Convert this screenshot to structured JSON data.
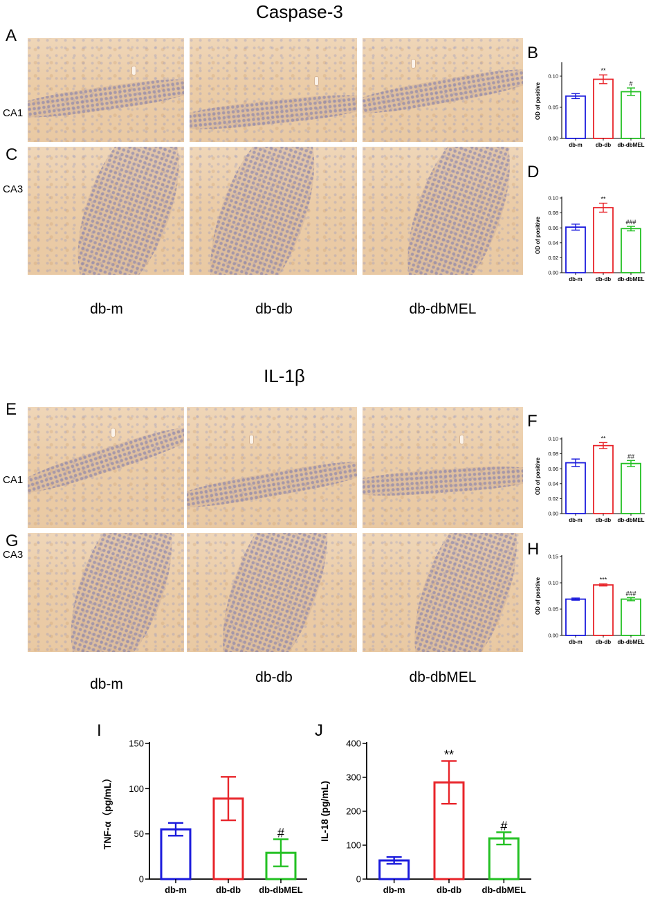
{
  "sections": {
    "top_title": "Caspase-3",
    "mid_title": "IL-1β"
  },
  "panel_letters": [
    "A",
    "B",
    "C",
    "D",
    "E",
    "F",
    "G",
    "H",
    "I",
    "J"
  ],
  "region_labels": [
    "CA1",
    "CA3",
    "CA1",
    "CA3"
  ],
  "group_labels": [
    "db-m",
    "db-db",
    "db-dbMEL"
  ],
  "colors": {
    "db-m": "#1a1adc",
    "db-db": "#e8242a",
    "db-dbMEL": "#22c022"
  },
  "chart_data": [
    {
      "panel": "B",
      "type": "bar",
      "categories": [
        "db-m",
        "db-db",
        "db-dbMEL"
      ],
      "values": [
        0.068,
        0.095,
        0.075
      ],
      "errors": [
        0.004,
        0.007,
        0.006
      ],
      "annotations": [
        "",
        "**",
        "#"
      ],
      "ylabel": "OD of positive",
      "ylim": [
        0,
        0.12
      ],
      "yticks": [
        "0.00",
        "0.05",
        "0.10"
      ],
      "ytick_values": [
        0,
        0.05,
        0.1
      ]
    },
    {
      "panel": "D",
      "type": "bar",
      "categories": [
        "db-m",
        "db-db",
        "db-dbMEL"
      ],
      "values": [
        0.061,
        0.087,
        0.059
      ],
      "errors": [
        0.004,
        0.006,
        0.003
      ],
      "annotations": [
        "",
        "**",
        "###"
      ],
      "ylabel": "OD of positive",
      "ylim": [
        0,
        0.1
      ],
      "yticks": [
        "0.00",
        "0.02",
        "0.04",
        "0.06",
        "0.08",
        "0.10"
      ],
      "ytick_values": [
        0,
        0.02,
        0.04,
        0.06,
        0.08,
        0.1
      ]
    },
    {
      "panel": "F",
      "type": "bar",
      "categories": [
        "db-m",
        "db-db",
        "db-dbMEL"
      ],
      "values": [
        0.068,
        0.091,
        0.067
      ],
      "errors": [
        0.005,
        0.004,
        0.004
      ],
      "annotations": [
        "",
        "**",
        "##"
      ],
      "ylabel": "OD of positive",
      "ylim": [
        0,
        0.1
      ],
      "yticks": [
        "0.00",
        "0.02",
        "0.04",
        "0.06",
        "0.08",
        "0.10"
      ],
      "ytick_values": [
        0,
        0.02,
        0.04,
        0.06,
        0.08,
        0.1
      ]
    },
    {
      "panel": "H",
      "type": "bar",
      "categories": [
        "db-m",
        "db-db",
        "db-dbMEL"
      ],
      "values": [
        0.069,
        0.096,
        0.069
      ],
      "errors": [
        0.002,
        0.002,
        0.003
      ],
      "annotations": [
        "",
        "***",
        "###"
      ],
      "ylabel": "OD of positive",
      "ylim": [
        0,
        0.15
      ],
      "yticks": [
        "0.00",
        "0.05",
        "0.10",
        "0.15"
      ],
      "ytick_values": [
        0,
        0.05,
        0.1,
        0.15
      ]
    },
    {
      "panel": "I",
      "type": "bar",
      "categories": [
        "db-m",
        "db-db",
        "db-dbMEL"
      ],
      "values": [
        55,
        89,
        29
      ],
      "errors": [
        7,
        24,
        15
      ],
      "annotations": [
        "",
        "",
        "#"
      ],
      "ylabel": "TNF-α（pg/mL）",
      "ylim": [
        0,
        150
      ],
      "yticks": [
        "0",
        "50",
        "100",
        "150"
      ],
      "ytick_values": [
        0,
        50,
        100,
        150
      ]
    },
    {
      "panel": "J",
      "type": "bar",
      "categories": [
        "db-m",
        "db-db",
        "db-dbMEL"
      ],
      "values": [
        55,
        285,
        120
      ],
      "errors": [
        10,
        63,
        18
      ],
      "annotations": [
        "",
        "**",
        "#"
      ],
      "ylabel": "IL-18 (pg/mL)",
      "ylim": [
        0,
        400
      ],
      "yticks": [
        "0",
        "100",
        "200",
        "300",
        "400"
      ],
      "ytick_values": [
        0,
        100,
        200,
        300,
        400
      ]
    }
  ]
}
